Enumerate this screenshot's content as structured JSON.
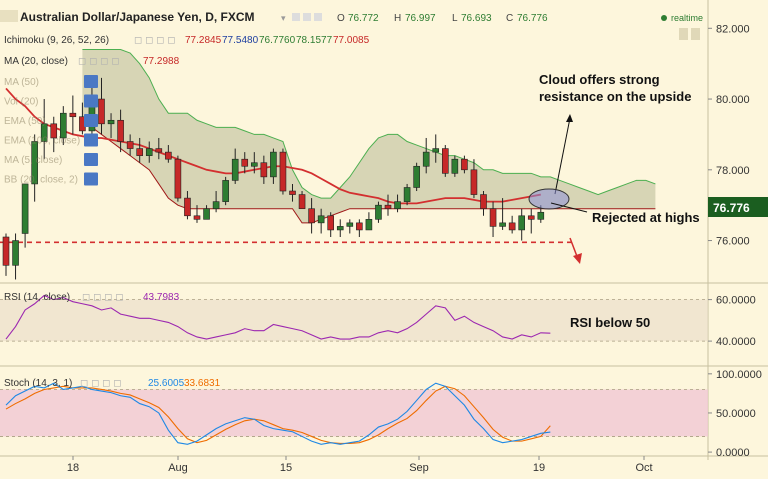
{
  "header": {
    "title": "Australian Dollar/Japanese Yen, D, FXCM",
    "ohlc": {
      "o_label": "O",
      "o": "76.772",
      "h_label": "H",
      "h": "76.997",
      "l_label": "L",
      "l": "76.693",
      "c_label": "C",
      "c": "76.776"
    },
    "realtime": "realtime"
  },
  "indicators": {
    "ichimoku": {
      "label": "Ichimoku (9, 26, 52, 26)",
      "values": [
        "77.2845",
        "77.5480",
        "76.7760",
        "78.1577",
        "77.0085"
      ]
    },
    "ma20": {
      "label": "MA (20, close)",
      "value": "77.2988"
    },
    "hidden": [
      "MA (50)",
      "Vol (20)",
      "EMA (50)",
      "EMA (100, close)",
      "MA (5, close)",
      "BB (20, close, 2)"
    ]
  },
  "annotations": {
    "cloud": "Cloud offers strong resistance on the upside",
    "cloud_line1": "Cloud offers strong",
    "cloud_line2": "resistance on the upside",
    "highs": "Rejected at highs",
    "rsi": "RSI below 50"
  },
  "price_badge": "76.776",
  "rsi": {
    "label": "RSI (14, close)",
    "value": "43.7983"
  },
  "stoch": {
    "label": "Stoch (14, 3, 1)",
    "k": "25.6005",
    "d": "33.6831"
  },
  "colors": {
    "bull": "#2e7d32",
    "bear": "#c62828",
    "ma": "#d32f2f",
    "cloud": "#c9c9a8",
    "cloud_line": "#4caf50",
    "rsi": "#9c27b0",
    "stoch_k": "#1e88e5",
    "stoch_d": "#ef6c00",
    "badge": "#1b5e20",
    "osc_bg": "#f0c8d4"
  },
  "chart_data": {
    "type": "candlestick",
    "x_ticks": [
      "18",
      "Aug",
      "15",
      "Sep",
      "19",
      "Oct"
    ],
    "y_ticks_main": [
      "82.000",
      "80.000",
      "78.000",
      "76.000"
    ],
    "y_ticks_rsi": [
      "60.0000",
      "40.0000"
    ],
    "y_ticks_stoch": [
      "100.0000",
      "50.0000",
      "0.0000"
    ],
    "ylim_main": [
      74.8,
      82.8
    ],
    "ylim_rsi": [
      28,
      68
    ],
    "ylim_stoch": [
      -5,
      110
    ],
    "candles": [
      {
        "o": 76.1,
        "h": 76.2,
        "l": 75.0,
        "c": 75.3
      },
      {
        "o": 75.3,
        "h": 76.2,
        "l": 74.9,
        "c": 76.0
      },
      {
        "o": 76.2,
        "h": 77.6,
        "l": 75.8,
        "c": 77.6
      },
      {
        "o": 77.6,
        "h": 79.0,
        "l": 77.1,
        "c": 78.8
      },
      {
        "o": 78.8,
        "h": 80.0,
        "l": 78.3,
        "c": 79.3
      },
      {
        "o": 79.3,
        "h": 79.5,
        "l": 78.5,
        "c": 78.9
      },
      {
        "o": 78.9,
        "h": 79.8,
        "l": 78.7,
        "c": 79.6
      },
      {
        "o": 79.6,
        "h": 80.1,
        "l": 79.0,
        "c": 79.5
      },
      {
        "o": 79.5,
        "h": 79.9,
        "l": 79.0,
        "c": 79.1
      },
      {
        "o": 79.1,
        "h": 80.4,
        "l": 78.9,
        "c": 80.0
      },
      {
        "o": 80.0,
        "h": 80.6,
        "l": 79.0,
        "c": 79.3
      },
      {
        "o": 79.3,
        "h": 79.6,
        "l": 78.9,
        "c": 79.4
      },
      {
        "o": 79.4,
        "h": 79.7,
        "l": 78.5,
        "c": 78.8
      },
      {
        "o": 78.8,
        "h": 79.0,
        "l": 78.4,
        "c": 78.6
      },
      {
        "o": 78.6,
        "h": 78.9,
        "l": 78.2,
        "c": 78.4
      },
      {
        "o": 78.4,
        "h": 78.8,
        "l": 78.2,
        "c": 78.6
      },
      {
        "o": 78.6,
        "h": 78.9,
        "l": 78.3,
        "c": 78.5
      },
      {
        "o": 78.5,
        "h": 78.7,
        "l": 78.2,
        "c": 78.3
      },
      {
        "o": 78.3,
        "h": 78.4,
        "l": 77.1,
        "c": 77.2
      },
      {
        "o": 77.2,
        "h": 77.4,
        "l": 76.6,
        "c": 76.7
      },
      {
        "o": 76.7,
        "h": 77.0,
        "l": 76.5,
        "c": 76.6
      },
      {
        "o": 76.6,
        "h": 77.0,
        "l": 76.6,
        "c": 76.9
      },
      {
        "o": 76.9,
        "h": 77.4,
        "l": 76.8,
        "c": 77.1
      },
      {
        "o": 77.1,
        "h": 77.8,
        "l": 77.0,
        "c": 77.7
      },
      {
        "o": 77.7,
        "h": 78.6,
        "l": 77.6,
        "c": 78.3
      },
      {
        "o": 78.3,
        "h": 78.5,
        "l": 77.9,
        "c": 78.1
      },
      {
        "o": 78.1,
        "h": 78.5,
        "l": 77.9,
        "c": 78.2
      },
      {
        "o": 78.2,
        "h": 78.4,
        "l": 77.6,
        "c": 77.8
      },
      {
        "o": 77.8,
        "h": 78.6,
        "l": 77.6,
        "c": 78.5
      },
      {
        "o": 78.5,
        "h": 78.6,
        "l": 77.3,
        "c": 77.4
      },
      {
        "o": 77.4,
        "h": 77.6,
        "l": 77.1,
        "c": 77.3
      },
      {
        "o": 77.3,
        "h": 77.4,
        "l": 76.9,
        "c": 76.9
      },
      {
        "o": 76.9,
        "h": 77.2,
        "l": 76.2,
        "c": 76.5
      },
      {
        "o": 76.5,
        "h": 76.9,
        "l": 76.2,
        "c": 76.7
      },
      {
        "o": 76.7,
        "h": 76.8,
        "l": 76.1,
        "c": 76.3
      },
      {
        "o": 76.3,
        "h": 76.6,
        "l": 76.1,
        "c": 76.4
      },
      {
        "o": 76.4,
        "h": 76.6,
        "l": 76.2,
        "c": 76.5
      },
      {
        "o": 76.5,
        "h": 76.6,
        "l": 76.1,
        "c": 76.3
      },
      {
        "o": 76.3,
        "h": 76.8,
        "l": 76.3,
        "c": 76.6
      },
      {
        "o": 76.6,
        "h": 77.1,
        "l": 76.5,
        "c": 77.0
      },
      {
        "o": 77.0,
        "h": 77.3,
        "l": 76.7,
        "c": 76.9
      },
      {
        "o": 76.9,
        "h": 77.3,
        "l": 76.8,
        "c": 77.1
      },
      {
        "o": 77.1,
        "h": 77.6,
        "l": 77.0,
        "c": 77.5
      },
      {
        "o": 77.5,
        "h": 78.2,
        "l": 77.4,
        "c": 78.1
      },
      {
        "o": 78.1,
        "h": 78.9,
        "l": 77.9,
        "c": 78.5
      },
      {
        "o": 78.5,
        "h": 79.0,
        "l": 78.2,
        "c": 78.6
      },
      {
        "o": 78.6,
        "h": 78.7,
        "l": 77.8,
        "c": 77.9
      },
      {
        "o": 77.9,
        "h": 78.4,
        "l": 77.8,
        "c": 78.3
      },
      {
        "o": 78.3,
        "h": 78.4,
        "l": 77.9,
        "c": 78.0
      },
      {
        "o": 78.0,
        "h": 78.3,
        "l": 77.2,
        "c": 77.3
      },
      {
        "o": 77.3,
        "h": 77.4,
        "l": 76.7,
        "c": 76.9
      },
      {
        "o": 76.9,
        "h": 77.1,
        "l": 76.1,
        "c": 76.4
      },
      {
        "o": 76.4,
        "h": 77.2,
        "l": 76.3,
        "c": 76.5
      },
      {
        "o": 76.5,
        "h": 76.7,
        "l": 76.2,
        "c": 76.3
      },
      {
        "o": 76.3,
        "h": 76.9,
        "l": 76.0,
        "c": 76.7
      },
      {
        "o": 76.7,
        "h": 76.9,
        "l": 76.2,
        "c": 76.6
      },
      {
        "o": 76.6,
        "h": 77.0,
        "l": 76.5,
        "c": 76.8
      }
    ],
    "ma20": [
      80.3,
      80.0,
      79.8,
      79.5,
      79.3,
      79.2,
      79.1,
      79.0,
      78.95,
      78.9,
      78.9,
      78.85,
      78.8,
      78.75,
      78.7,
      78.6,
      78.5,
      78.4,
      78.3,
      78.2,
      78.1,
      78.0,
      77.95,
      77.9,
      77.9,
      77.95,
      78.0,
      78.05,
      78.1,
      78.1,
      78.05,
      78.0,
      77.9,
      77.75,
      77.6,
      77.45,
      77.35,
      77.3,
      77.25,
      77.2,
      77.1,
      77.05,
      77.05,
      77.05,
      77.1,
      77.15,
      77.2,
      77.2,
      77.2,
      77.15,
      77.1,
      77.1,
      77.1,
      77.15,
      77.2,
      77.25,
      77.3
    ],
    "cloud_a": [
      null,
      null,
      null,
      null,
      null,
      null,
      null,
      null,
      81.4,
      81.4,
      81.4,
      81.4,
      81.4,
      81.3,
      81.0,
      80.6,
      80.0,
      79.6,
      79.6,
      79.6,
      79.4,
      79.3,
      79.2,
      79.2,
      79.2,
      79.1,
      79.0,
      79.0,
      78.9,
      78.8,
      78.0,
      77.5,
      77.3,
      77.2,
      77.2,
      77.5,
      77.8,
      78.2,
      78.6,
      78.9,
      79.0,
      79.0,
      78.8,
      78.7,
      78.6,
      78.5,
      78.4,
      78.4,
      78.3,
      78.2,
      78.0,
      78.0,
      77.9,
      77.9,
      77.9,
      77.9,
      77.8,
      77.8,
      77.7,
      77.6,
      77.5,
      77.4,
      77.3,
      77.4,
      77.5,
      77.6,
      77.7,
      77.7,
      77.6
    ],
    "cloud_b": [
      null,
      null,
      null,
      null,
      null,
      null,
      null,
      null,
      79.4,
      79.2,
      79.0,
      78.8,
      78.6,
      78.4,
      78.2,
      78.0,
      77.6,
      77.2,
      77.0,
      76.9,
      76.9,
      76.9,
      76.9,
      76.9,
      76.9,
      76.9,
      76.9,
      76.9,
      76.9,
      76.9,
      76.9,
      76.5,
      76.5,
      76.6,
      76.7,
      76.8,
      76.9,
      76.9,
      76.9,
      76.9,
      76.9,
      76.9,
      76.9,
      76.9,
      76.9,
      76.9,
      76.9,
      76.9,
      76.9,
      76.9,
      76.9,
      76.9,
      76.9,
      76.9,
      76.9,
      76.9,
      76.9,
      76.9,
      76.9,
      76.9,
      76.9,
      76.9,
      76.9,
      76.9,
      76.9,
      76.9,
      76.9,
      76.9,
      76.9
    ],
    "support_level": 75.95,
    "rsi_values": [
      41,
      47,
      55,
      58,
      62,
      60,
      61,
      59,
      58,
      57,
      55,
      56,
      53,
      52,
      51,
      51,
      50,
      49,
      47,
      44,
      42,
      41,
      42,
      43,
      44,
      46,
      45,
      45,
      48,
      47,
      46,
      45,
      43,
      41,
      42,
      41,
      41,
      42,
      42,
      44,
      45,
      44,
      46,
      49,
      53,
      57,
      56,
      50,
      52,
      49,
      47,
      45,
      42,
      41,
      43,
      42,
      44,
      43.8
    ],
    "stoch_k": [
      60,
      72,
      78,
      84,
      82,
      88,
      80,
      82,
      84,
      80,
      78,
      76,
      72,
      70,
      62,
      58,
      50,
      28,
      12,
      10,
      14,
      22,
      30,
      36,
      40,
      44,
      42,
      34,
      30,
      28,
      26,
      20,
      14,
      10,
      12,
      10,
      12,
      14,
      22,
      32,
      36,
      42,
      52,
      66,
      80,
      88,
      84,
      72,
      60,
      42,
      30,
      16,
      12,
      14,
      16,
      20,
      24,
      25.6
    ],
    "stoch_d": [
      55,
      62,
      68,
      75,
      80,
      82,
      84,
      82,
      82,
      82,
      80,
      78,
      75,
      73,
      68,
      63,
      57,
      45,
      30,
      17,
      12,
      15,
      22,
      29,
      35,
      40,
      42,
      40,
      35,
      30,
      28,
      25,
      20,
      15,
      12,
      11,
      11,
      12,
      16,
      22,
      30,
      37,
      43,
      53,
      66,
      78,
      84,
      81,
      72,
      58,
      44,
      29,
      19,
      14,
      14,
      17,
      20,
      33.7
    ]
  }
}
